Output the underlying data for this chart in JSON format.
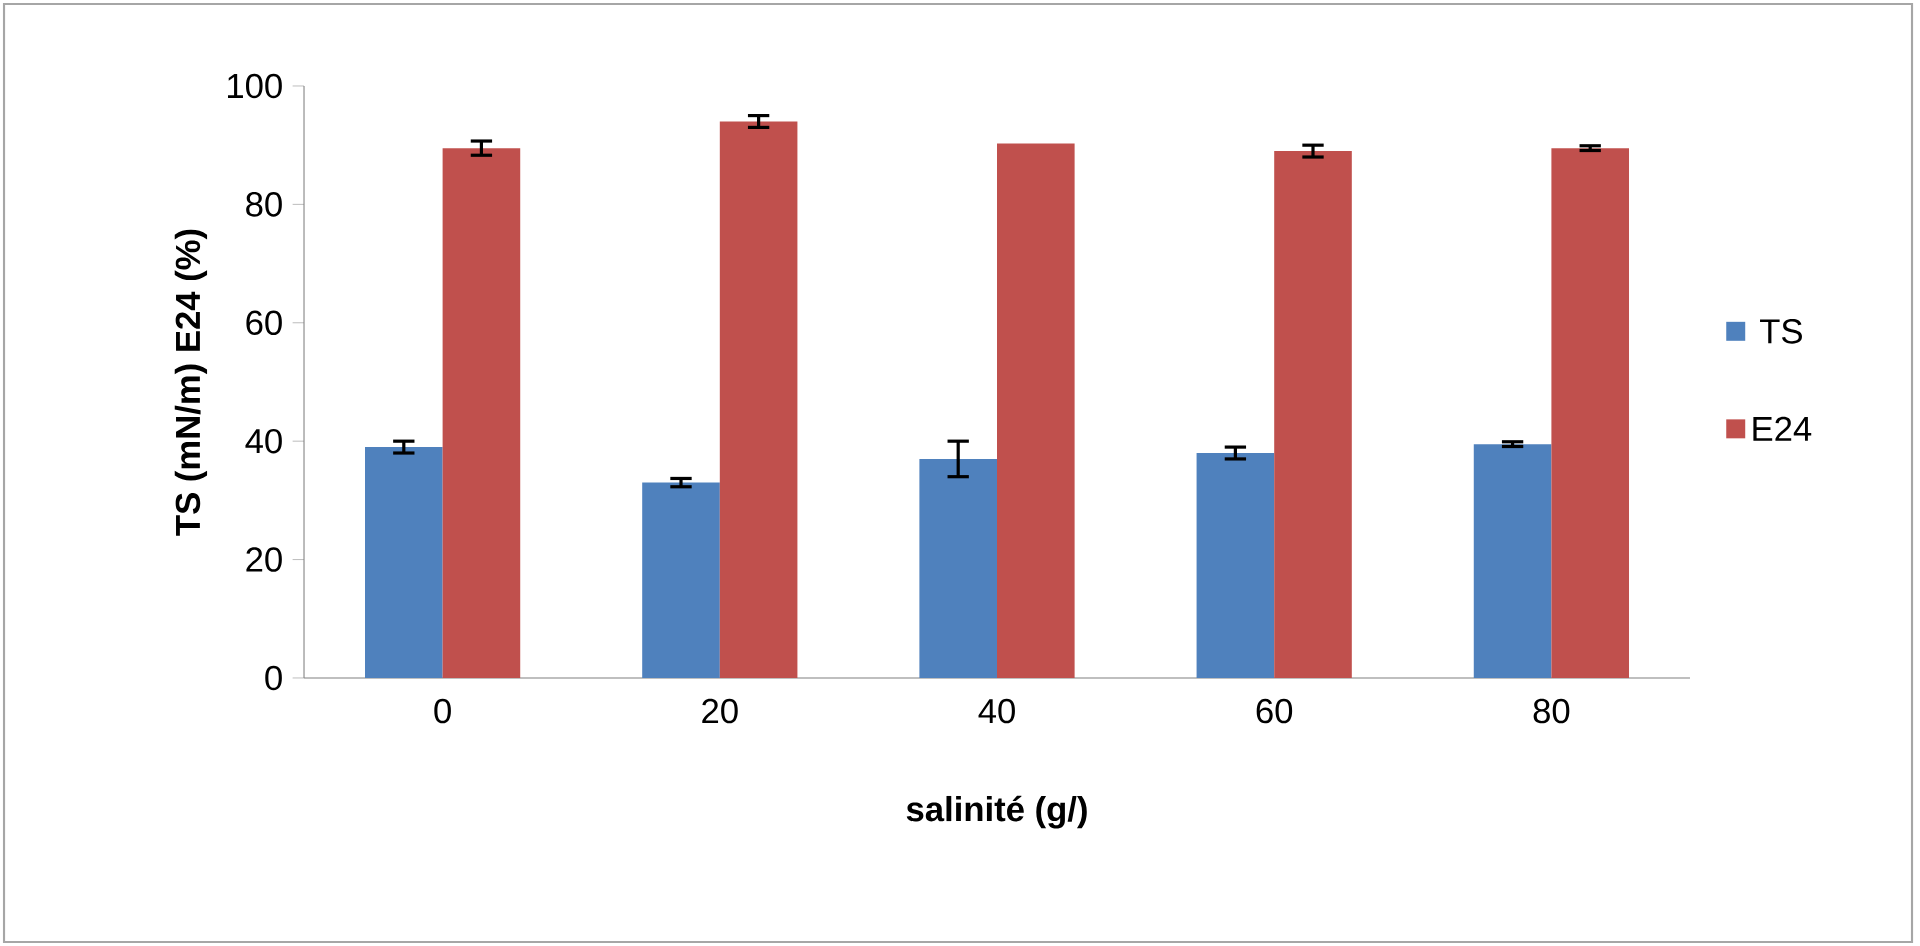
{
  "chart_data": {
    "type": "bar",
    "xlabel": "salinité (g/)",
    "ylabel": "TS (mN/m) E24 (%)",
    "categories": [
      "0",
      "20",
      "40",
      "60",
      "80"
    ],
    "series": [
      {
        "name": "TS",
        "color": "#4f81bd",
        "values": [
          39,
          33,
          37,
          38,
          39.5
        ],
        "errors": [
          1,
          0.7,
          3,
          1,
          0.4
        ]
      },
      {
        "name": "E24",
        "color": "#c0504d",
        "values": [
          89.5,
          94,
          90.3,
          89,
          89.5
        ],
        "errors": [
          1.2,
          1,
          null,
          1,
          0.4
        ]
      }
    ],
    "ylim": [
      0,
      100
    ],
    "yticks": [
      0,
      20,
      40,
      60,
      80,
      100
    ],
    "legend": "right"
  }
}
